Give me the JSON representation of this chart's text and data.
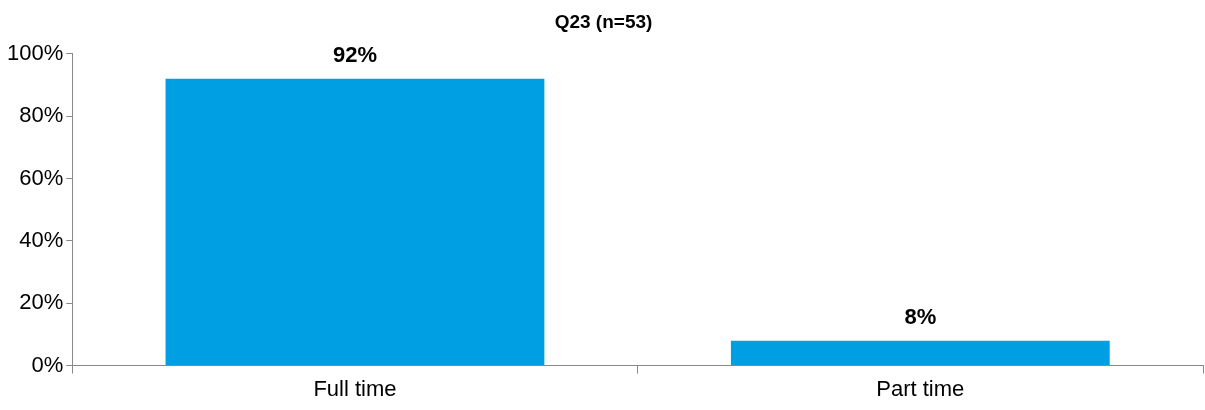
{
  "chart_data": {
    "type": "bar",
    "title": "Q23 (n=53)",
    "categories": [
      "Full time",
      "Part time"
    ],
    "values": [
      92,
      8
    ],
    "value_labels": [
      "92%",
      "8%"
    ],
    "color": "#009fe3",
    "ylim": [
      0,
      100
    ],
    "yticks": [
      {
        "value": 0,
        "label": "0%"
      },
      {
        "value": 20,
        "label": "20%"
      },
      {
        "value": 40,
        "label": "40%"
      },
      {
        "value": 60,
        "label": "60%"
      },
      {
        "value": 80,
        "label": "80%"
      },
      {
        "value": 100,
        "label": "100%"
      }
    ],
    "grid": false,
    "legend": false
  }
}
